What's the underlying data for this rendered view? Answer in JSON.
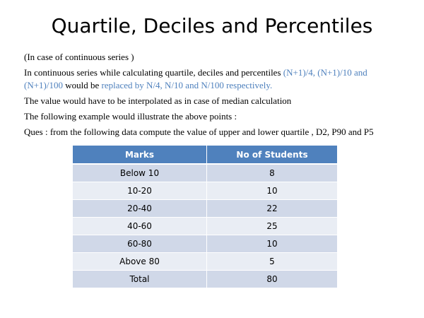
{
  "header": {
    "title": "Quartile, Deciles and Percentiles"
  },
  "paragraphs": [
    "(In case of continuous series )",
    "The value would have to be interpolated as in case of median calculation",
    "The following example would illustrate the above points :",
    "Ques : from the following data compute the value of upper and lower quartile , D2, P90 and P5"
  ],
  "paragraph_parts": [
    "In continuous series while calculating quartile,  deciles  and percentiles ",
    "(N+1)/4, (N+1)/10 and (N+1)/100",
    " would be ",
    "replaced by N/4, N/10 and N/100 respectively."
  ],
  "table": {
    "header": [
      "Marks",
      "No of Students"
    ],
    "rows": [
      [
        "Below 10",
        8
      ],
      [
        "10-20",
        10
      ],
      [
        "20-40",
        22
      ],
      [
        "40-60",
        25
      ],
      [
        "60-80",
        10
      ],
      [
        "Above 80",
        5
      ],
      [
        "Total",
        80
      ]
    ]
  }
}
